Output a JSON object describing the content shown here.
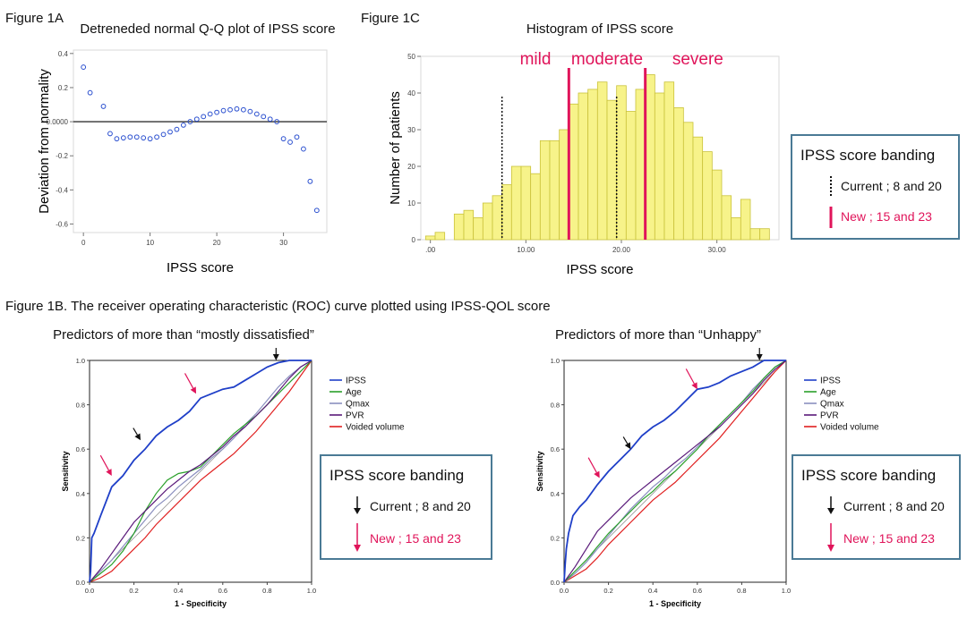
{
  "figure_1a": {
    "label": "Figure 1A",
    "title": "Detreneded normal Q-Q plot of IPSS score"
  },
  "figure_1c": {
    "label": "Figure 1C",
    "title": "Histogram of IPSS score",
    "band_labels": [
      "mild",
      "moderate",
      "severe"
    ]
  },
  "figure_1b": {
    "label": "Figure 1B. The receiver operating characteristic (ROC) curve plotted using IPSS-QOL score",
    "left_title": "Predictors of more than “mostly dissatisfied”",
    "right_title": "Predictors of more than “Unhappy”"
  },
  "banding_legend": {
    "title": "IPSS score banding",
    "current": "Current ; 8 and 20",
    "new": "New ; 15 and 23"
  },
  "colors": {
    "pink": "#e0145a",
    "ipss": "#1f3fc8",
    "age": "#2aa02a",
    "qmax": "#8a8fbf",
    "pvr": "#5a1a7a",
    "voided": "#e02020",
    "hist_bar": "#f7f38a",
    "hist_edge": "#c9c23a",
    "qq_marker": "#2a4fcf"
  },
  "chart_data": [
    {
      "type": "scatter",
      "title": "Detreneded normal Q-Q plot of IPSS score",
      "xlabel": "IPSS score",
      "ylabel": "Deviation from normality",
      "xlim": [
        -1.5,
        36.5
      ],
      "ylim": [
        -0.65,
        0.42
      ],
      "xticks": [
        0,
        10,
        20,
        30
      ],
      "yticks": [
        0.4,
        0.2,
        0.0,
        -0.2,
        -0.4,
        -0.6
      ],
      "ytick_labels": [
        "0.4",
        "0.2",
        "0.0000",
        "-0.2",
        "-0.4",
        "-0.6"
      ],
      "reference_line_y": 0,
      "x": [
        0,
        1,
        3,
        4,
        5,
        6,
        7,
        8,
        9,
        10,
        11,
        12,
        13,
        14,
        15,
        16,
        17,
        18,
        19,
        20,
        21,
        22,
        23,
        24,
        25,
        26,
        27,
        28,
        29,
        30,
        31,
        32,
        33,
        34,
        35
      ],
      "y": [
        0.32,
        0.17,
        0.09,
        -0.07,
        -0.1,
        -0.095,
        -0.09,
        -0.09,
        -0.095,
        -0.1,
        -0.09,
        -0.075,
        -0.06,
        -0.045,
        -0.02,
        0.0,
        0.015,
        0.03,
        0.045,
        0.055,
        0.065,
        0.07,
        0.075,
        0.07,
        0.06,
        0.045,
        0.03,
        0.015,
        0.0,
        -0.1,
        -0.12,
        -0.09,
        -0.16,
        -0.35,
        -0.52
      ]
    },
    {
      "type": "bar",
      "title": "Histogram of IPSS score",
      "xlabel": "IPSS score",
      "ylabel": "Number of patients",
      "xlim": [
        -1,
        36.5
      ],
      "ylim": [
        0,
        50
      ],
      "xticks": [
        0,
        10,
        20,
        30
      ],
      "xtick_labels": [
        ".00",
        "10.00",
        "20.00",
        "30.00"
      ],
      "yticks": [
        0,
        10,
        20,
        30,
        40,
        50
      ],
      "x": [
        0,
        1,
        2,
        3,
        4,
        5,
        6,
        7,
        8,
        9,
        10,
        11,
        12,
        13,
        14,
        15,
        16,
        17,
        18,
        19,
        20,
        21,
        22,
        23,
        24,
        25,
        26,
        27,
        28,
        29,
        30,
        31,
        32,
        33,
        34,
        35
      ],
      "values": [
        1,
        2,
        0,
        7,
        8,
        6,
        10,
        12,
        15,
        20,
        20,
        18,
        27,
        27,
        30,
        37,
        40,
        41,
        43,
        38,
        42,
        35,
        41,
        45,
        40,
        43,
        36,
        32,
        28,
        24,
        19,
        12,
        6,
        11,
        3,
        3
      ],
      "current_cutoffs": [
        7.5,
        19.5
      ],
      "new_cutoffs": [
        14.5,
        22.5
      ]
    },
    {
      "type": "line",
      "title": "Predictors of more than “mostly dissatisfied”",
      "xlabel": "1 - Specificity",
      "ylabel": "Sensitivity",
      "xlim": [
        0,
        1
      ],
      "ylim": [
        0,
        1
      ],
      "xticks": [
        0,
        0.2,
        0.4,
        0.6,
        0.8,
        1.0
      ],
      "xtick_labels": [
        "0.0",
        "0.2",
        "0.4",
        "0.6",
        "0.8",
        "1.0"
      ],
      "yticks": [
        0,
        0.2,
        0.4,
        0.6,
        0.8,
        1.0
      ],
      "ytick_labels": [
        "0.0",
        "0.2",
        "0.4",
        "0.6",
        "0.8",
        "1.0"
      ],
      "series": [
        {
          "name": "IPSS",
          "x": [
            0,
            0.005,
            0.01,
            0.02,
            0.05,
            0.1,
            0.15,
            0.2,
            0.25,
            0.3,
            0.35,
            0.4,
            0.45,
            0.5,
            0.55,
            0.6,
            0.65,
            0.7,
            0.75,
            0.8,
            0.85,
            0.9,
            0.95,
            1.0
          ],
          "y": [
            0,
            0.05,
            0.2,
            0.22,
            0.3,
            0.43,
            0.48,
            0.55,
            0.6,
            0.66,
            0.7,
            0.73,
            0.77,
            0.83,
            0.85,
            0.87,
            0.88,
            0.91,
            0.94,
            0.97,
            0.99,
            1.0,
            1.0,
            1.0
          ]
        },
        {
          "name": "Age",
          "x": [
            0,
            0.05,
            0.1,
            0.15,
            0.2,
            0.25,
            0.3,
            0.35,
            0.4,
            0.45,
            0.5,
            0.55,
            0.6,
            0.65,
            0.7,
            0.75,
            0.8,
            0.85,
            0.9,
            0.95,
            1.0
          ],
          "y": [
            0,
            0.04,
            0.08,
            0.14,
            0.22,
            0.32,
            0.4,
            0.46,
            0.49,
            0.5,
            0.52,
            0.57,
            0.62,
            0.67,
            0.71,
            0.75,
            0.8,
            0.85,
            0.9,
            0.95,
            1.0
          ]
        },
        {
          "name": "Qmax",
          "x": [
            0,
            0.05,
            0.1,
            0.15,
            0.2,
            0.25,
            0.3,
            0.35,
            0.4,
            0.45,
            0.5,
            0.55,
            0.6,
            0.65,
            0.7,
            0.75,
            0.8,
            0.85,
            0.9,
            0.95,
            1.0
          ],
          "y": [
            0,
            0.05,
            0.1,
            0.16,
            0.22,
            0.28,
            0.34,
            0.38,
            0.43,
            0.47,
            0.51,
            0.56,
            0.6,
            0.65,
            0.71,
            0.76,
            0.82,
            0.88,
            0.93,
            0.97,
            1.0
          ]
        },
        {
          "name": "PVR",
          "x": [
            0,
            0.05,
            0.1,
            0.15,
            0.2,
            0.25,
            0.3,
            0.35,
            0.4,
            0.45,
            0.5,
            0.55,
            0.6,
            0.65,
            0.7,
            0.75,
            0.8,
            0.85,
            0.9,
            0.95,
            1.0
          ],
          "y": [
            0,
            0.06,
            0.13,
            0.2,
            0.27,
            0.32,
            0.37,
            0.42,
            0.46,
            0.5,
            0.53,
            0.57,
            0.61,
            0.66,
            0.7,
            0.75,
            0.8,
            0.86,
            0.92,
            0.97,
            1.0
          ]
        },
        {
          "name": "Voided volume",
          "x": [
            0,
            0.05,
            0.1,
            0.15,
            0.2,
            0.25,
            0.3,
            0.35,
            0.4,
            0.45,
            0.5,
            0.55,
            0.6,
            0.65,
            0.7,
            0.75,
            0.8,
            0.85,
            0.9,
            0.95,
            1.0
          ],
          "y": [
            0,
            0.02,
            0.05,
            0.1,
            0.15,
            0.2,
            0.26,
            0.31,
            0.36,
            0.41,
            0.46,
            0.5,
            0.54,
            0.58,
            0.63,
            0.68,
            0.74,
            0.8,
            0.86,
            0.93,
            1.0
          ]
        }
      ],
      "current_arrows": [
        {
          "x": 0.23,
          "y": 0.64
        },
        {
          "x": 0.84,
          "y": 1.0
        }
      ],
      "new_arrows": [
        {
          "x": 0.1,
          "y": 0.48
        },
        {
          "x": 0.48,
          "y": 0.85
        }
      ]
    },
    {
      "type": "line",
      "title": "Predictors of more than “Unhappy”",
      "xlabel": "1 - Specificity",
      "ylabel": "Sensitivity",
      "xlim": [
        0,
        1
      ],
      "ylim": [
        0,
        1
      ],
      "xticks": [
        0,
        0.2,
        0.4,
        0.6,
        0.8,
        1.0
      ],
      "xtick_labels": [
        "0.0",
        "0.2",
        "0.4",
        "0.6",
        "0.8",
        "1.0"
      ],
      "yticks": [
        0,
        0.2,
        0.4,
        0.6,
        0.8,
        1.0
      ],
      "ytick_labels": [
        "0.0",
        "0.2",
        "0.4",
        "0.6",
        "0.8",
        "1.0"
      ],
      "series": [
        {
          "name": "IPSS",
          "x": [
            0,
            0.005,
            0.01,
            0.02,
            0.04,
            0.07,
            0.1,
            0.15,
            0.2,
            0.25,
            0.3,
            0.35,
            0.4,
            0.45,
            0.5,
            0.55,
            0.6,
            0.65,
            0.7,
            0.75,
            0.8,
            0.85,
            0.9,
            0.95,
            1.0
          ],
          "y": [
            0,
            0.08,
            0.15,
            0.22,
            0.3,
            0.34,
            0.37,
            0.44,
            0.5,
            0.55,
            0.6,
            0.66,
            0.7,
            0.73,
            0.77,
            0.82,
            0.87,
            0.88,
            0.9,
            0.93,
            0.95,
            0.97,
            1.0,
            1.0,
            1.0
          ]
        },
        {
          "name": "Age",
          "x": [
            0,
            0.05,
            0.1,
            0.15,
            0.2,
            0.25,
            0.3,
            0.35,
            0.4,
            0.45,
            0.5,
            0.55,
            0.6,
            0.65,
            0.7,
            0.75,
            0.8,
            0.85,
            0.9,
            0.95,
            1.0
          ],
          "y": [
            0,
            0.05,
            0.1,
            0.16,
            0.22,
            0.27,
            0.32,
            0.37,
            0.41,
            0.46,
            0.5,
            0.55,
            0.6,
            0.66,
            0.71,
            0.76,
            0.81,
            0.86,
            0.92,
            0.97,
            1.0
          ]
        },
        {
          "name": "Qmax",
          "x": [
            0,
            0.05,
            0.1,
            0.15,
            0.2,
            0.25,
            0.3,
            0.35,
            0.4,
            0.45,
            0.5,
            0.55,
            0.6,
            0.65,
            0.7,
            0.75,
            0.8,
            0.85,
            0.9,
            0.95,
            1.0
          ],
          "y": [
            0,
            0.04,
            0.09,
            0.15,
            0.21,
            0.27,
            0.33,
            0.38,
            0.43,
            0.47,
            0.52,
            0.56,
            0.61,
            0.66,
            0.71,
            0.76,
            0.81,
            0.87,
            0.92,
            0.97,
            1.0
          ]
        },
        {
          "name": "PVR",
          "x": [
            0,
            0.05,
            0.1,
            0.15,
            0.2,
            0.25,
            0.3,
            0.35,
            0.4,
            0.45,
            0.5,
            0.55,
            0.6,
            0.65,
            0.7,
            0.75,
            0.8,
            0.85,
            0.9,
            0.95,
            1.0
          ],
          "y": [
            0,
            0.07,
            0.15,
            0.23,
            0.28,
            0.33,
            0.38,
            0.42,
            0.46,
            0.5,
            0.54,
            0.58,
            0.62,
            0.66,
            0.7,
            0.75,
            0.8,
            0.85,
            0.91,
            0.96,
            1.0
          ]
        },
        {
          "name": "Voided volume",
          "x": [
            0,
            0.05,
            0.1,
            0.15,
            0.2,
            0.25,
            0.3,
            0.35,
            0.4,
            0.45,
            0.5,
            0.55,
            0.6,
            0.65,
            0.7,
            0.75,
            0.8,
            0.85,
            0.9,
            0.95,
            1.0
          ],
          "y": [
            0,
            0.03,
            0.06,
            0.11,
            0.17,
            0.22,
            0.27,
            0.32,
            0.37,
            0.41,
            0.45,
            0.5,
            0.55,
            0.6,
            0.65,
            0.71,
            0.77,
            0.83,
            0.89,
            0.95,
            1.0
          ]
        }
      ],
      "current_arrows": [
        {
          "x": 0.3,
          "y": 0.6
        },
        {
          "x": 0.88,
          "y": 1.0
        }
      ],
      "new_arrows": [
        {
          "x": 0.16,
          "y": 0.47
        },
        {
          "x": 0.6,
          "y": 0.87
        }
      ]
    }
  ]
}
